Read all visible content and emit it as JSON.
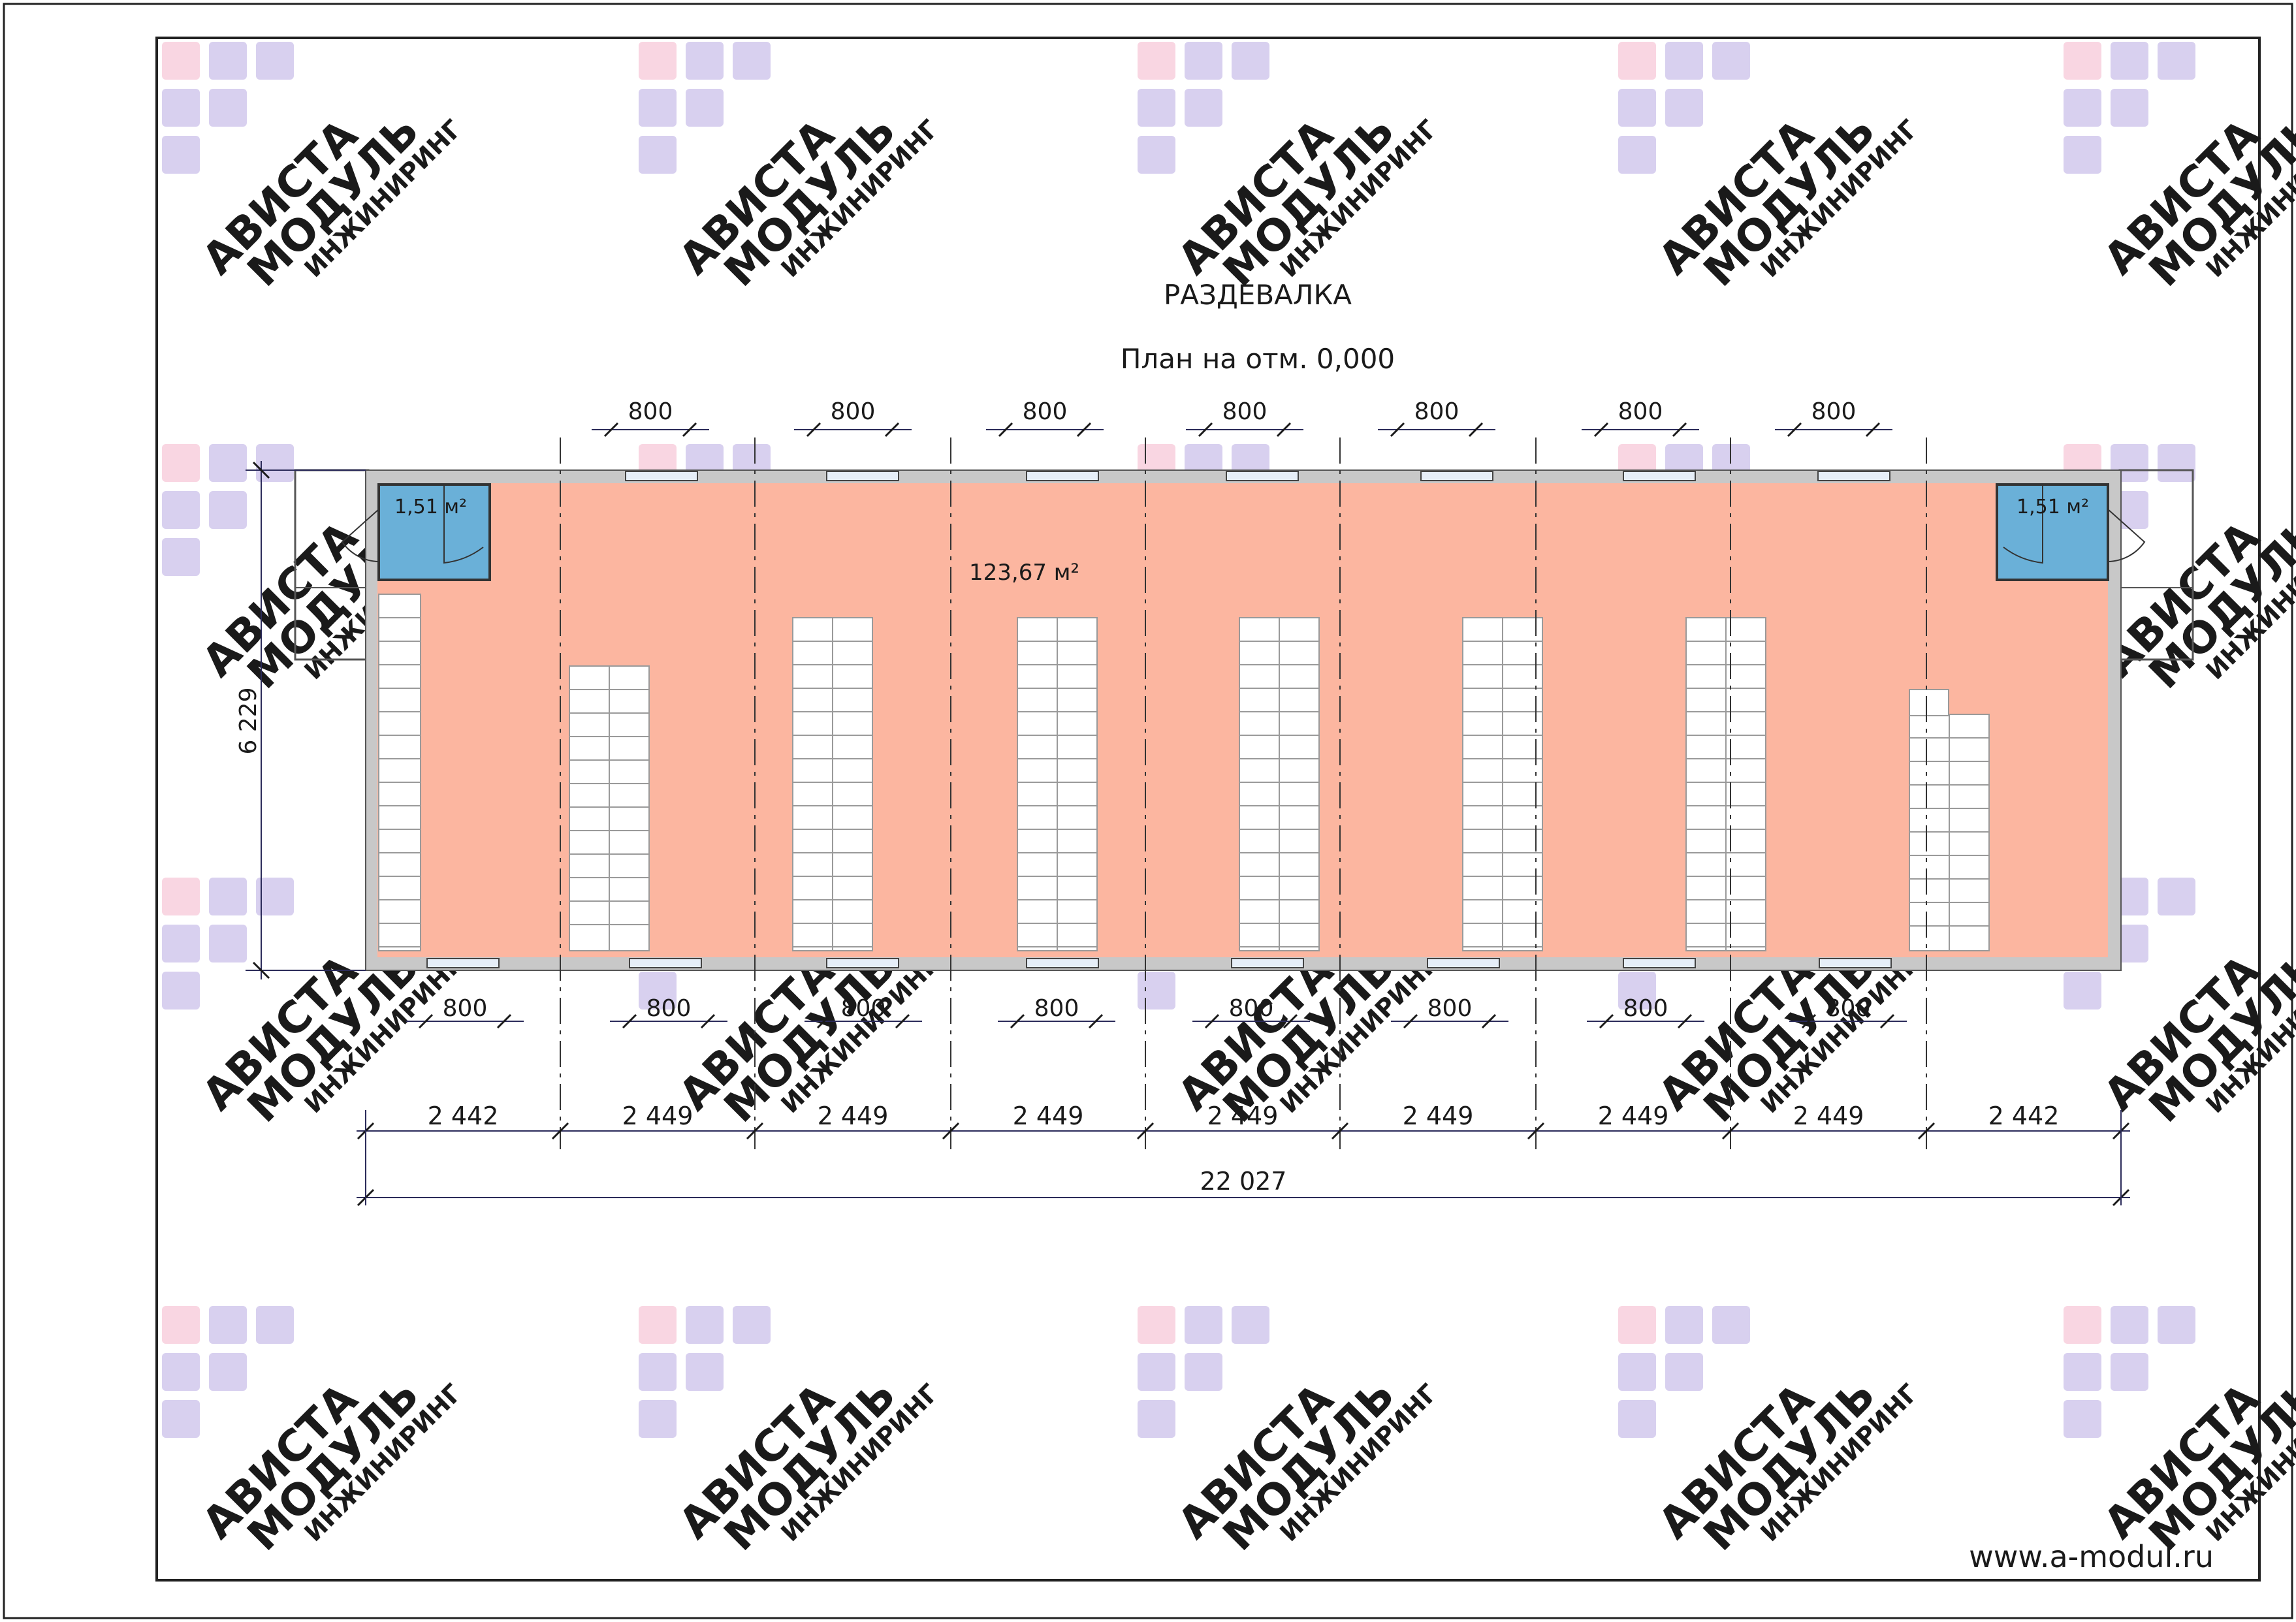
{
  "drawing": {
    "title": "РАЗДЕВАЛКА",
    "subtitle": "План на отм. 0,000",
    "website": "www.a-modul.ru"
  },
  "rooms": {
    "main_area": "123,67 м²",
    "left_small_area": "1,51 м²",
    "right_small_area": "1,51 м²"
  },
  "dimensions": {
    "height_total": "6 229",
    "door_width": "800",
    "module_widths": [
      "2 442",
      "2 449",
      "2 449",
      "2 449",
      "2 449",
      "2 449",
      "2 449",
      "2 449",
      "2 442"
    ],
    "total_width": "22 027"
  },
  "watermark": {
    "line1": "АВИСТА",
    "line2": "МОДУЛЬ",
    "line3": "ИНЖИНИРИНГ"
  },
  "colors": {
    "main_room": "#fcb6a0",
    "small_room": "#6ab0d8",
    "wall": "#c8c8c8",
    "dimension_line": "#2b2b5a",
    "watermark": "#d8d0ef",
    "watermark_accent": "#f9d6e2"
  }
}
